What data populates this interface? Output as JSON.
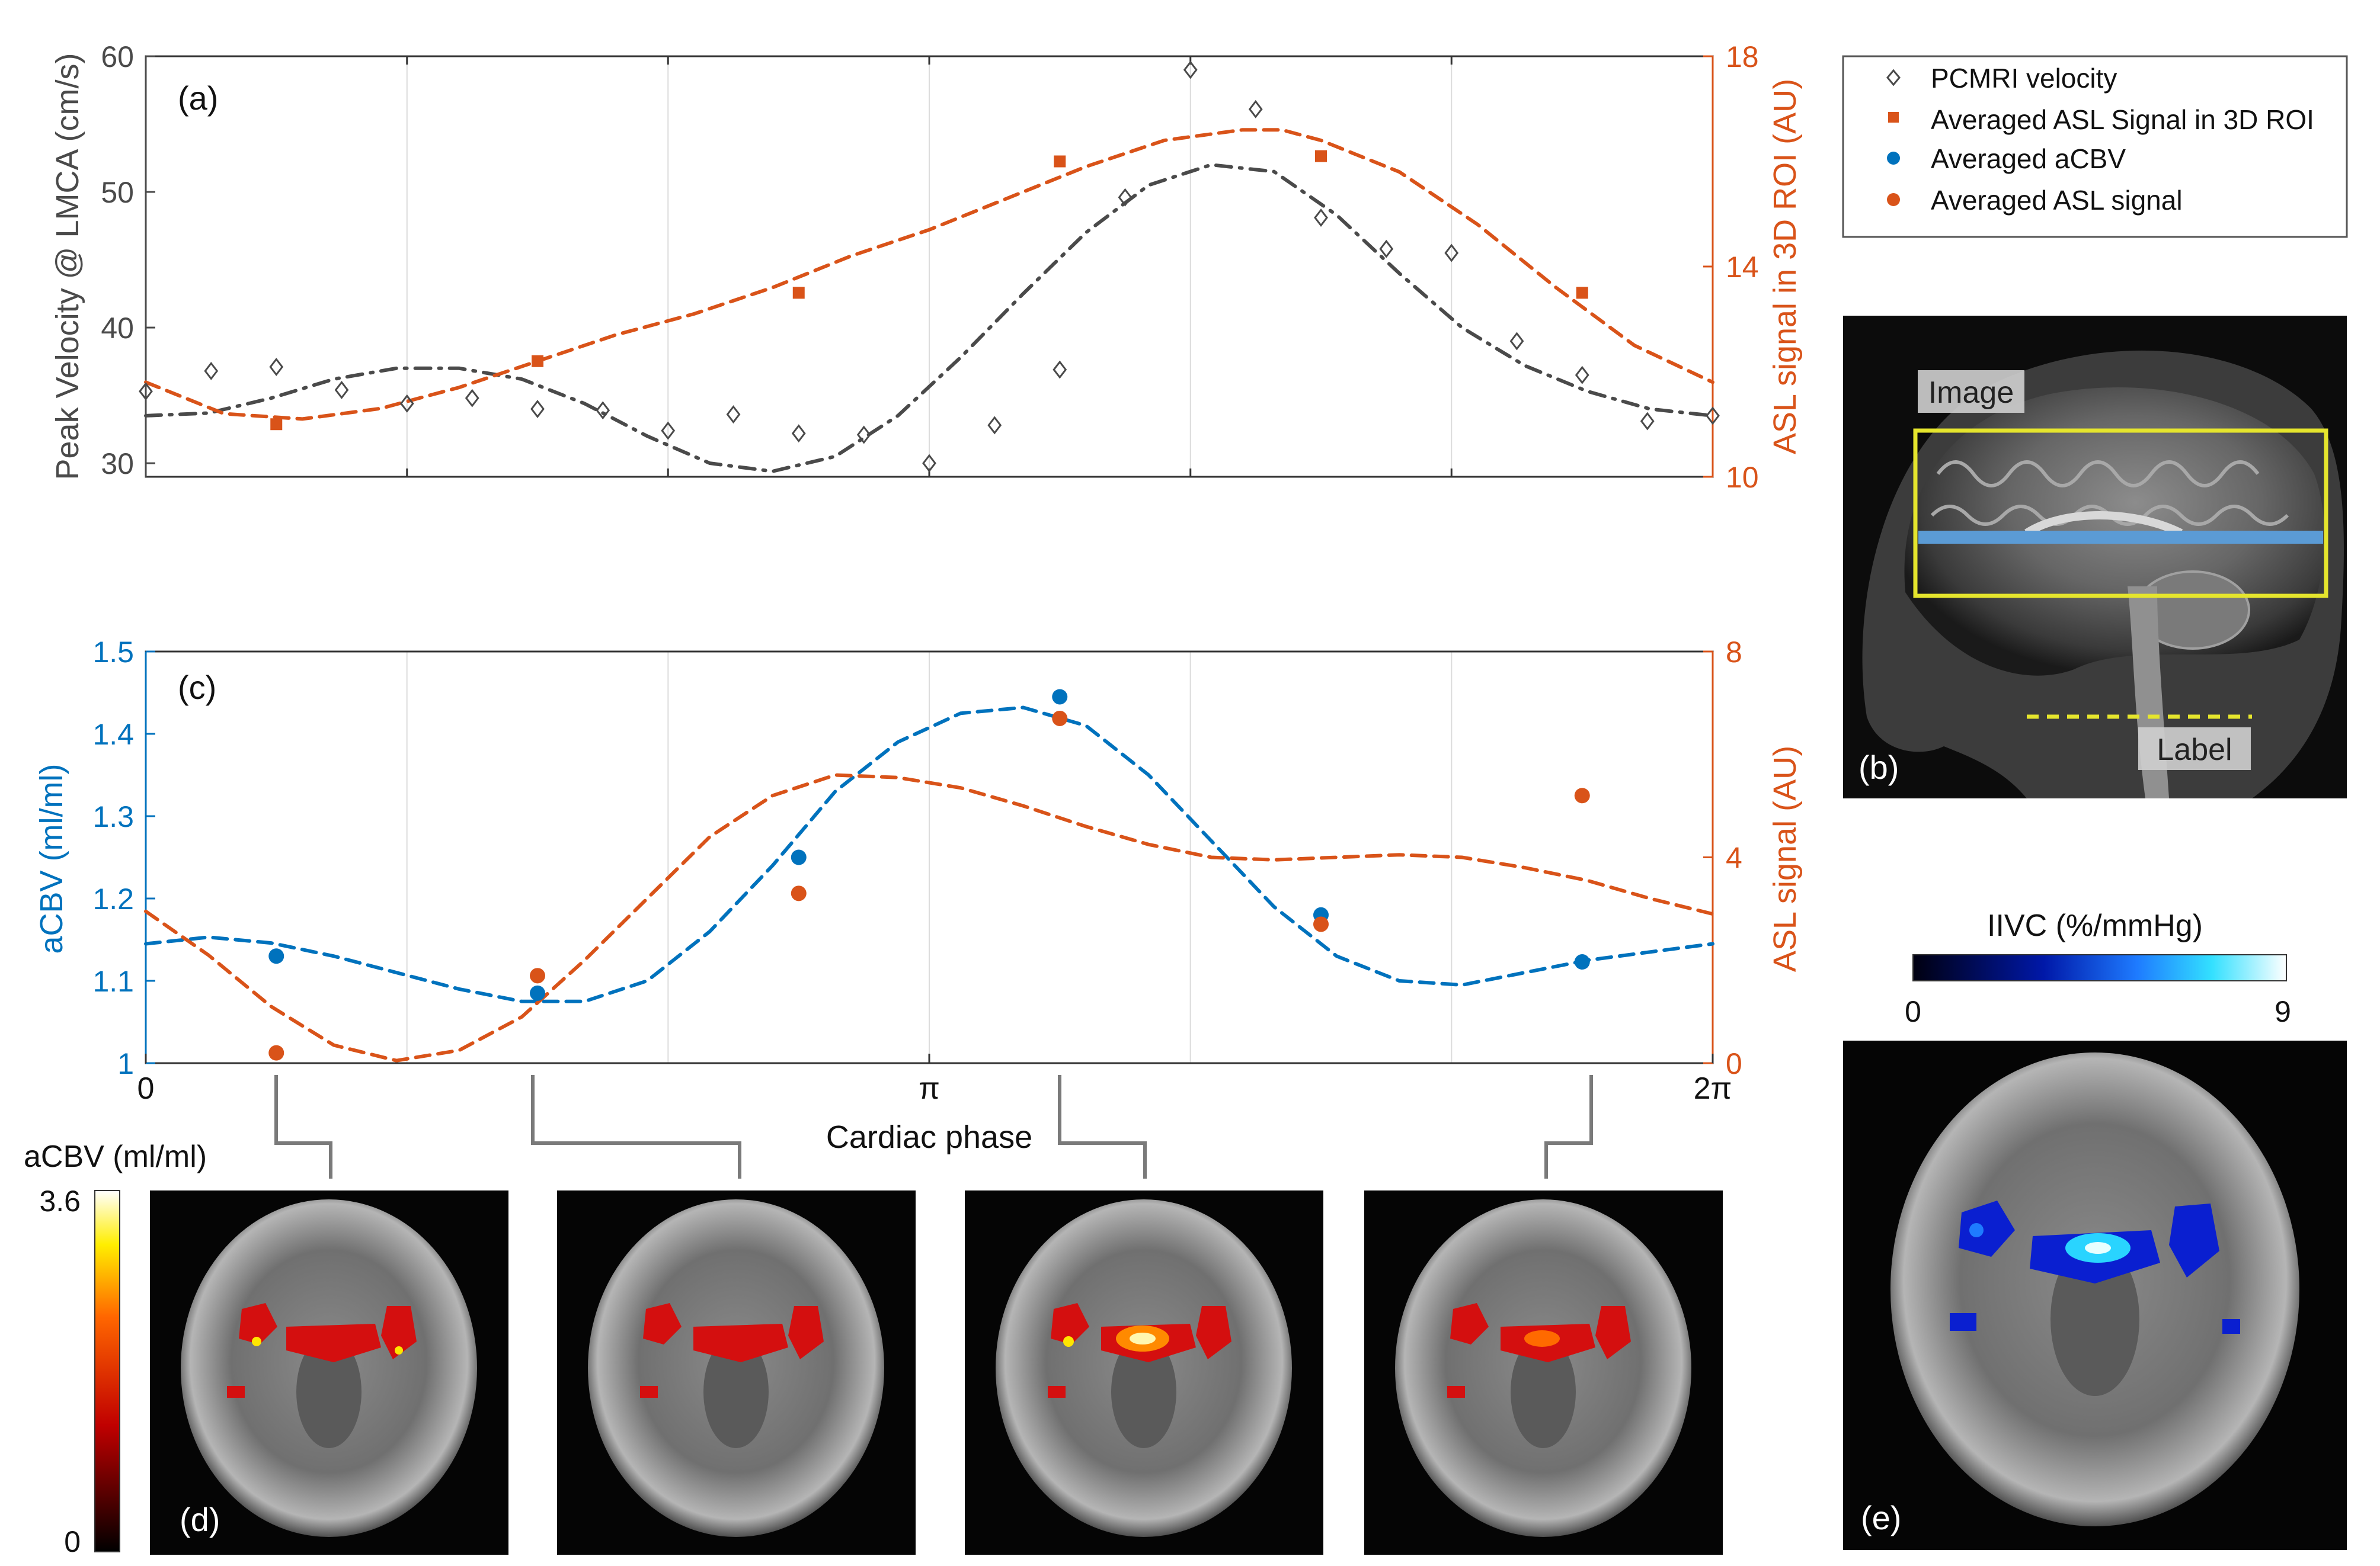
{
  "colors": {
    "gray": "#4a4a4a",
    "orange": "#d95319",
    "blue": "#0072bd",
    "axis": "#333333",
    "grid": "#dcdcdc",
    "yellow_box": "#e5e52d",
    "slice_blue": "#5b9bd5"
  },
  "panel_a": {
    "label": "(a)",
    "left_axis_label": "Peak Velocity @ LMCA (cm/s)",
    "right_axis_label": "ASL signal in 3D ROI (AU)"
  },
  "panel_b": {
    "label": "(b)",
    "image_tag": "Image",
    "label_tag": "Label"
  },
  "panel_c": {
    "label": "(c)",
    "left_axis_label": "aCBV (ml/ml)",
    "right_axis_label": "ASL signal (AU)",
    "x_axis_label": "Cardiac phase"
  },
  "panel_d": {
    "label": "(d)",
    "colorbar_title": "aCBV (ml/ml)",
    "colorbar_max": "3.6",
    "colorbar_min": "0"
  },
  "panel_e": {
    "label": "(e)",
    "colorbar_title": "IIVC (%/mmHg)",
    "colorbar_min": "0",
    "colorbar_max": "9"
  },
  "legend": {
    "items": [
      {
        "label": "PCMRI velocity",
        "marker": "diamond",
        "color": "#4a4a4a"
      },
      {
        "label": "Averaged ASL Signal in 3D ROI",
        "marker": "square",
        "color": "#d95319"
      },
      {
        "label": "Averaged aCBV",
        "marker": "circle",
        "color": "#0072bd"
      },
      {
        "label": "Averaged ASL signal",
        "marker": "circle",
        "color": "#d95319"
      }
    ]
  },
  "chart_data": [
    {
      "type": "scatter",
      "panel": "a",
      "x_unit": "fraction of 2π",
      "x_range": [
        0,
        1
      ],
      "x_ticks": [
        0,
        0.1667,
        0.3333,
        0.5,
        0.6667,
        0.8333,
        1.0
      ],
      "left_axis": {
        "label": "Peak Velocity @ LMCA (cm/s)",
        "range": [
          29,
          60
        ],
        "ticks": [
          30,
          40,
          50,
          60
        ]
      },
      "right_axis": {
        "label": "ASL signal in 3D ROI (AU)",
        "range": [
          10,
          18
        ],
        "ticks": [
          10,
          14,
          18
        ]
      },
      "grid": true,
      "series": [
        {
          "name": "PCMRI velocity",
          "axis": "left",
          "marker": "diamond",
          "x": [
            0,
            0.0417,
            0.0833,
            0.125,
            0.1667,
            0.2083,
            0.25,
            0.2917,
            0.3333,
            0.375,
            0.4167,
            0.4583,
            0.5,
            0.5417,
            0.5833,
            0.625,
            0.6667,
            0.7083,
            0.75,
            0.7917,
            0.8333,
            0.875,
            0.9167,
            0.9583,
            1.0
          ],
          "y": [
            35.3,
            36.8,
            37.1,
            35.4,
            34.4,
            34.8,
            34.0,
            33.9,
            32.4,
            33.6,
            32.2,
            32.1,
            30.0,
            32.8,
            36.9,
            49.6,
            59.0,
            56.1,
            48.1,
            45.8,
            45.5,
            39.0,
            36.5,
            33.1,
            33.5
          ]
        },
        {
          "name": "PCMRI velocity fit",
          "axis": "left",
          "style": "dash-dot",
          "x": [
            0,
            0.04,
            0.08,
            0.12,
            0.16,
            0.2,
            0.24,
            0.28,
            0.32,
            0.36,
            0.4,
            0.44,
            0.48,
            0.52,
            0.56,
            0.6,
            0.64,
            0.68,
            0.72,
            0.76,
            0.8,
            0.84,
            0.88,
            0.92,
            0.96,
            1.0
          ],
          "y": [
            33.5,
            33.7,
            34.8,
            36.2,
            37.0,
            37.0,
            36.2,
            34.4,
            32.0,
            30.0,
            29.4,
            30.5,
            33.5,
            37.8,
            42.5,
            47.0,
            50.5,
            52.0,
            51.5,
            48.3,
            44.0,
            40.0,
            37.2,
            35.3,
            34.0,
            33.5
          ]
        },
        {
          "name": "Averaged ASL Signal in 3D ROI",
          "axis": "right",
          "marker": "square",
          "x": [
            0.0833,
            0.25,
            0.4167,
            0.5833,
            0.75,
            0.9167
          ],
          "y": [
            11.0,
            12.2,
            13.5,
            16.0,
            16.1,
            13.5
          ]
        },
        {
          "name": "Averaged ASL Signal in 3D ROI fit",
          "axis": "right",
          "style": "dashed",
          "x": [
            0,
            0.05,
            0.1,
            0.15,
            0.2,
            0.25,
            0.3,
            0.35,
            0.4,
            0.45,
            0.5,
            0.55,
            0.6,
            0.65,
            0.7,
            0.725,
            0.75,
            0.8,
            0.85,
            0.9,
            0.95,
            1.0
          ],
          "y": [
            11.8,
            11.2,
            11.1,
            11.3,
            11.7,
            12.2,
            12.7,
            13.1,
            13.6,
            14.2,
            14.7,
            15.3,
            15.9,
            16.4,
            16.6,
            16.6,
            16.4,
            15.8,
            14.8,
            13.6,
            12.5,
            11.8
          ]
        }
      ]
    },
    {
      "type": "scatter",
      "panel": "c",
      "x_unit": "fraction of 2π",
      "x_range": [
        0,
        1
      ],
      "x_tick_labels": [
        {
          "x": 0,
          "label": "0"
        },
        {
          "x": 0.5,
          "label": "π"
        },
        {
          "x": 1.0,
          "label": "2π"
        }
      ],
      "xlabel": "Cardiac phase",
      "left_axis": {
        "label": "aCBV (ml/ml)",
        "range": [
          1.0,
          1.5
        ],
        "ticks": [
          "1",
          "1.1",
          "1.2",
          "1.3",
          "1.4",
          "1.5"
        ]
      },
      "right_axis": {
        "label": "ASL signal (AU)",
        "range": [
          0,
          8
        ],
        "ticks": [
          "0",
          "4",
          "8"
        ]
      },
      "grid": true,
      "series": [
        {
          "name": "Averaged aCBV",
          "axis": "left",
          "marker": "circle",
          "x": [
            0.0833,
            0.25,
            0.4167,
            0.5833,
            0.75,
            0.9167
          ],
          "y": [
            1.13,
            1.085,
            1.25,
            1.445,
            1.18,
            1.123
          ]
        },
        {
          "name": "Averaged aCBV fit",
          "axis": "left",
          "style": "dashed",
          "x": [
            0,
            0.04,
            0.08,
            0.12,
            0.16,
            0.2,
            0.24,
            0.28,
            0.32,
            0.36,
            0.4,
            0.44,
            0.48,
            0.52,
            0.56,
            0.6,
            0.64,
            0.68,
            0.72,
            0.76,
            0.8,
            0.84,
            0.88,
            0.92,
            0.96,
            1.0
          ],
          "y": [
            1.145,
            1.153,
            1.146,
            1.13,
            1.11,
            1.09,
            1.075,
            1.075,
            1.1,
            1.16,
            1.24,
            1.33,
            1.39,
            1.425,
            1.432,
            1.41,
            1.35,
            1.27,
            1.19,
            1.13,
            1.1,
            1.095,
            1.11,
            1.125,
            1.135,
            1.145
          ]
        },
        {
          "name": "Averaged ASL signal",
          "axis": "right",
          "marker": "circle",
          "x": [
            0.0833,
            0.25,
            0.4167,
            0.5833,
            0.75,
            0.9167
          ],
          "y": [
            0.2,
            1.7,
            3.3,
            6.7,
            2.7,
            5.2
          ]
        },
        {
          "name": "Averaged ASL signal fit",
          "axis": "right",
          "style": "dashed",
          "x": [
            0,
            0.04,
            0.08,
            0.12,
            0.16,
            0.2,
            0.24,
            0.28,
            0.32,
            0.36,
            0.4,
            0.44,
            0.48,
            0.52,
            0.56,
            0.6,
            0.64,
            0.68,
            0.72,
            0.76,
            0.8,
            0.84,
            0.88,
            0.92,
            0.96,
            1.0
          ],
          "y": [
            2.95,
            2.1,
            1.1,
            0.35,
            0.05,
            0.25,
            0.9,
            2.0,
            3.2,
            4.4,
            5.2,
            5.6,
            5.55,
            5.35,
            5.0,
            4.6,
            4.25,
            4.0,
            3.95,
            4.0,
            4.05,
            4.0,
            3.8,
            3.55,
            3.2,
            2.9
          ]
        }
      ]
    }
  ]
}
